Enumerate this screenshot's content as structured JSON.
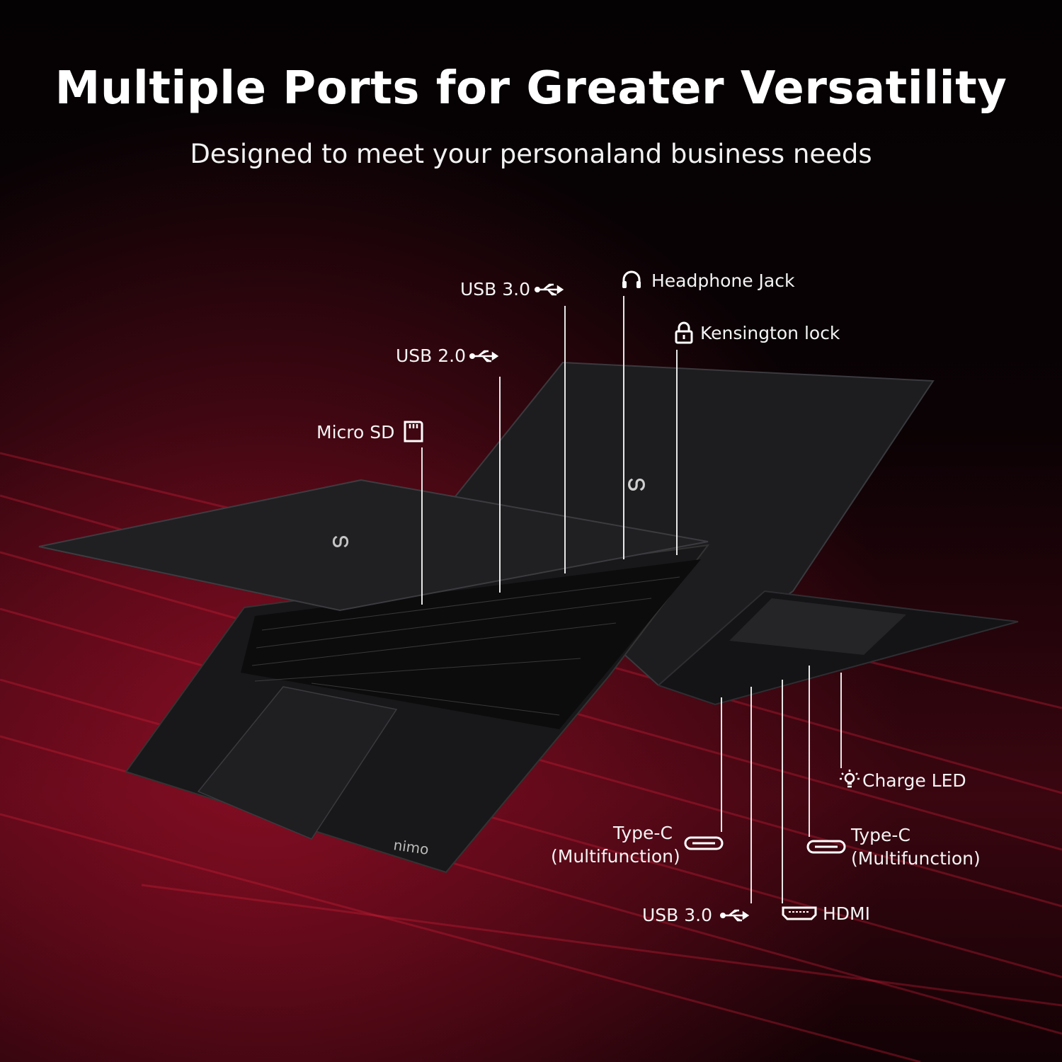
{
  "header": {
    "title": "Multiple Ports for Greater Versatility",
    "subtitle": "Designed to meet your personaland business needs"
  },
  "brand": {
    "logo_text": "nimo"
  },
  "colors": {
    "background": "#050203",
    "accent_red": "#b0102a",
    "laptop": "#1c1c1e"
  },
  "ports_left_side": [
    {
      "label": "USB 3.0",
      "icon": "usb-icon"
    },
    {
      "label": "Headphone Jack",
      "icon": "headphone-icon"
    },
    {
      "label": "Kensington lock",
      "icon": "lock-icon"
    },
    {
      "label": "USB 2.0",
      "icon": "usb-icon"
    },
    {
      "label": "Micro SD",
      "icon": "sd-card-icon"
    }
  ],
  "ports_right_side": [
    {
      "label": "Charge LED",
      "icon": "bulb-icon"
    },
    {
      "label": "Type-C",
      "sub": "(Multifunction)",
      "icon": "usb-c-icon"
    },
    {
      "label": "HDMI",
      "icon": "hdmi-icon"
    },
    {
      "label": "USB 3.0",
      "icon": "usb-icon"
    },
    {
      "label": "Type-C",
      "sub": "(Multifunction)",
      "icon": "usb-c-icon"
    }
  ]
}
